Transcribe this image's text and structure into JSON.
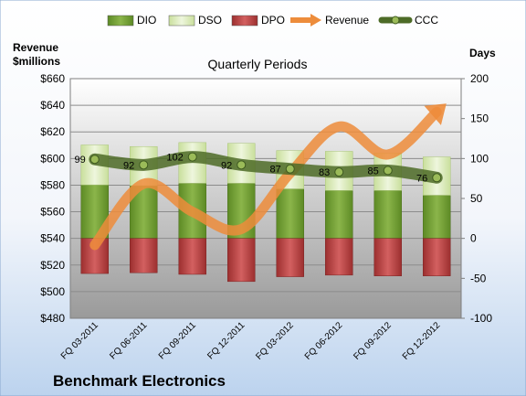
{
  "chart_data": {
    "type": "bar",
    "title": "Quarterly Periods",
    "company": "Benchmark Electronics",
    "left_axis_title": "Revenue\n$millions",
    "right_axis_title": "Days",
    "categories": [
      "FQ 03-2011",
      "FQ 06-2011",
      "FQ 09-2011",
      "FQ 12-2011",
      "FQ 03-2012",
      "FQ 06-2012",
      "FQ 09-2012",
      "FQ 12-2012"
    ],
    "left_axis": {
      "min": 480,
      "max": 660,
      "step": 20,
      "ticks": [
        "$480",
        "$500",
        "$520",
        "$540",
        "$560",
        "$580",
        "$600",
        "$620",
        "$640",
        "$660"
      ]
    },
    "right_axis": {
      "min": -100,
      "max": 200,
      "step": 50,
      "ticks": [
        "-100",
        "-50",
        "0",
        "50",
        "100",
        "150",
        "200"
      ]
    },
    "grid": true,
    "legend_position": "top",
    "series": [
      {
        "name": "DIO",
        "kind": "stacked-bar",
        "axis": "right",
        "color": "#6f9a2e",
        "values": [
          67,
          66,
          69,
          69,
          62,
          60,
          60,
          54
        ]
      },
      {
        "name": "DSO",
        "kind": "stacked-bar",
        "axis": "right",
        "color": "#d7e8b0",
        "values": [
          50,
          49,
          51,
          50,
          48,
          49,
          47,
          48
        ]
      },
      {
        "name": "DPO",
        "kind": "bar-negative",
        "axis": "right",
        "color": "#b23b3b",
        "values": [
          -44,
          -43,
          -45,
          -54,
          -48,
          -46,
          -47,
          -47
        ]
      },
      {
        "name": "Revenue",
        "kind": "line",
        "axis": "left",
        "color": "#ed8c3b",
        "values": [
          535,
          581,
          560,
          547,
          589,
          624,
          603,
          635
        ]
      },
      {
        "name": "CCC",
        "kind": "line-with-markers",
        "axis": "right",
        "color": "#4d6b27",
        "values": [
          99,
          92,
          102,
          92,
          87,
          83,
          85,
          76
        ],
        "labels": [
          "99",
          "92",
          "102",
          "92",
          "87",
          "83",
          "85",
          "76"
        ]
      }
    ]
  }
}
